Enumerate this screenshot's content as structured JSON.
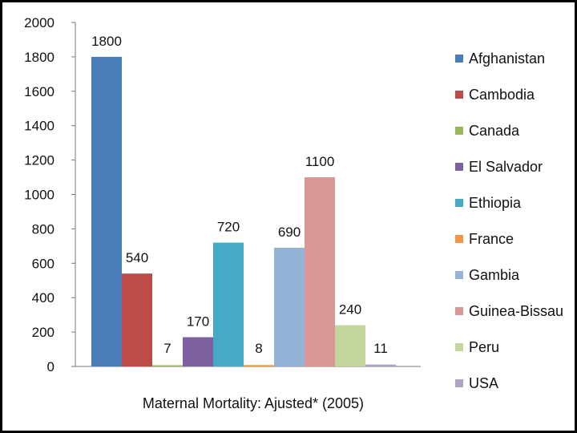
{
  "chart_data": {
    "type": "bar",
    "title": "",
    "xlabel": "Maternal Mortality: Ajusted* (2005)",
    "ylabel": "",
    "ylim": [
      0,
      2000
    ],
    "yticks": [
      0,
      200,
      400,
      600,
      800,
      1000,
      1200,
      1400,
      1600,
      1800,
      2000
    ],
    "grid": false,
    "legend_position": "right",
    "series": [
      {
        "name": "Afghanistan",
        "values": [
          1800
        ],
        "color": "#4A7EBB"
      },
      {
        "name": "Cambodia",
        "values": [
          540
        ],
        "color": "#BE4B48"
      },
      {
        "name": "Canada",
        "values": [
          7
        ],
        "color": "#98B954"
      },
      {
        "name": "El Salvador",
        "values": [
          170
        ],
        "color": "#7D60A0"
      },
      {
        "name": "Ethiopia",
        "values": [
          720
        ],
        "color": "#46AAC5"
      },
      {
        "name": "France",
        "values": [
          8
        ],
        "color": "#F69545"
      },
      {
        "name": "Gambia",
        "values": [
          690
        ],
        "color": "#95B3D7"
      },
      {
        "name": "Guinea-Bissau",
        "values": [
          1100
        ],
        "color": "#D99694"
      },
      {
        "name": "Peru",
        "values": [
          240
        ],
        "color": "#C3D69B"
      },
      {
        "name": "USA",
        "values": [
          11
        ],
        "color": "#B3A2C7"
      }
    ]
  }
}
